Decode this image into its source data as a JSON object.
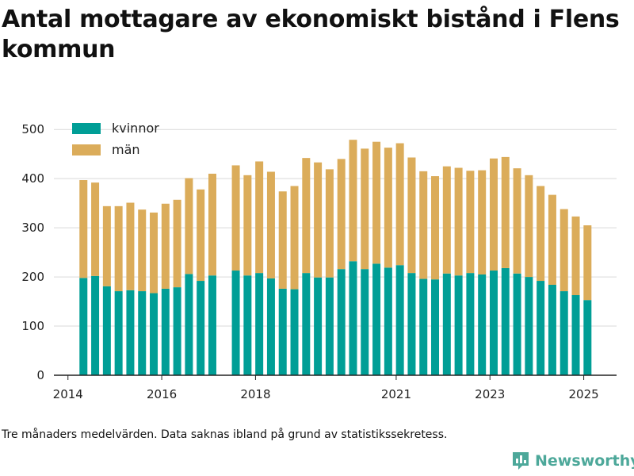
{
  "title": "Antal mottagare av ekonomiskt bistånd i Flens kommun",
  "footnote": "Tre månaders medelvärden. Data saknas ibland på grund av statistikssekretess.",
  "brand": {
    "name": "Newsworthy",
    "icon": "newsworthy-logo-icon",
    "color": "#4da89a"
  },
  "chart_data": {
    "type": "bar",
    "stacked": true,
    "x_axis": {
      "type": "time",
      "min": 2013.7,
      "max": 2025.7,
      "ticks": [
        "2014",
        "2016",
        "2018",
        "2021",
        "2023",
        "2025"
      ],
      "tick_positions": [
        2014.0,
        2016.0,
        2018.0,
        2021.0,
        2023.0,
        2025.0
      ]
    },
    "y_axis": {
      "min": 0,
      "max": 510,
      "ticks": [
        0,
        100,
        200,
        300,
        400,
        500
      ]
    },
    "grid": true,
    "legend_position": "top-left",
    "x": [
      2014.33,
      2014.58,
      2014.83,
      2015.08,
      2015.33,
      2015.58,
      2015.83,
      2016.08,
      2016.33,
      2016.58,
      2016.83,
      2017.08,
      2017.58,
      2017.83,
      2018.08,
      2018.33,
      2018.58,
      2018.83,
      2019.08,
      2019.33,
      2019.58,
      2019.83,
      2020.08,
      2020.33,
      2020.58,
      2020.83,
      2021.08,
      2021.33,
      2021.58,
      2021.83,
      2022.08,
      2022.33,
      2022.58,
      2022.83,
      2023.08,
      2023.33,
      2023.58,
      2023.83,
      2024.08,
      2024.33,
      2024.58,
      2024.83,
      2025.08
    ],
    "series": [
      {
        "name": "kvinnor",
        "color": "#009e96",
        "values": [
          198,
          202,
          181,
          171,
          173,
          171,
          167,
          176,
          179,
          206,
          192,
          203,
          213,
          203,
          208,
          197,
          176,
          175,
          208,
          199,
          199,
          216,
          232,
          216,
          227,
          219,
          224,
          208,
          196,
          195,
          207,
          203,
          208,
          205,
          213,
          218,
          207,
          200,
          192,
          184,
          171,
          163,
          153
        ]
      },
      {
        "name": "män",
        "color": "#dbac5a",
        "values": [
          199,
          190,
          163,
          173,
          178,
          166,
          164,
          173,
          178,
          195,
          186,
          207,
          214,
          204,
          227,
          217,
          198,
          210,
          234,
          234,
          220,
          224,
          247,
          245,
          248,
          244,
          248,
          235,
          219,
          210,
          218,
          219,
          208,
          212,
          228,
          226,
          214,
          207,
          193,
          183,
          167,
          160,
          152
        ]
      }
    ]
  }
}
